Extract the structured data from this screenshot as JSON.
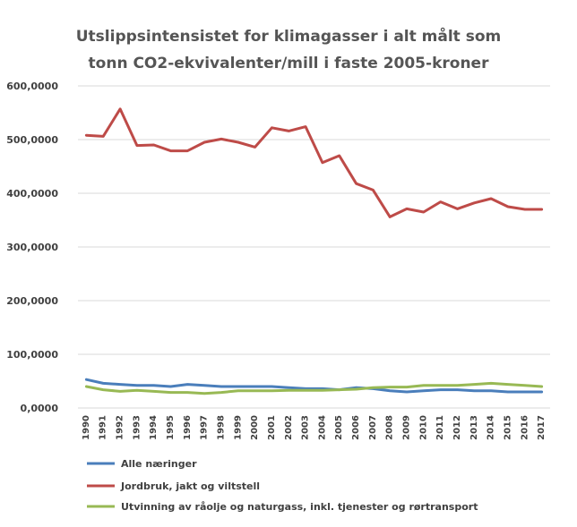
{
  "chart_data": {
    "type": "line",
    "title_lines": [
      "Utslippsintensistet for klimagasser i alt målt som",
      "tonn CO2-ekvivalenter/mill i faste 2005-kroner"
    ],
    "xlabel": "",
    "ylabel": "",
    "ylim": [
      0,
      600
    ],
    "yticks": [
      0,
      100,
      200,
      300,
      400,
      500,
      600
    ],
    "ytick_labels": [
      "0,0000",
      "100,0000",
      "200,0000",
      "300,0000",
      "400,0000",
      "500,0000",
      "600,0000"
    ],
    "grid": true,
    "legend_position": "bottom",
    "categories": [
      "1990",
      "1991",
      "1992",
      "1993",
      "1994",
      "1995",
      "1996",
      "1997",
      "1998",
      "1999",
      "2000",
      "2001",
      "2002",
      "2003",
      "2004",
      "2005",
      "2006",
      "2007",
      "2008",
      "2009",
      "2010",
      "2011",
      "2012",
      "2013",
      "2014",
      "2015",
      "2016",
      "2017"
    ],
    "series": [
      {
        "name": "Alle næringer",
        "color": "#4a7ebb",
        "values": [
          53,
          46,
          44,
          42,
          42,
          40,
          44,
          42,
          40,
          40,
          40,
          40,
          38,
          36,
          36,
          34,
          38,
          36,
          32,
          30,
          32,
          34,
          34,
          32,
          32,
          30,
          30,
          30
        ]
      },
      {
        "name": "Jordbruk, jakt og viltstell",
        "color": "#be4b48",
        "values": [
          508,
          506,
          557,
          489,
          490,
          479,
          479,
          495,
          501,
          495,
          486,
          522,
          516,
          524,
          457,
          470,
          418,
          406,
          356,
          371,
          365,
          384,
          371,
          382,
          390,
          375,
          370,
          370
        ]
      },
      {
        "name": "Utvinning av råolje og naturgass, inkl. tjenester og rørtransport",
        "color": "#98b954",
        "values": [
          40,
          34,
          31,
          33,
          31,
          29,
          29,
          27,
          29,
          32,
          32,
          32,
          33,
          33,
          33,
          34,
          35,
          38,
          39,
          39,
          42,
          42,
          42,
          44,
          46,
          44,
          42,
          40
        ]
      }
    ]
  }
}
